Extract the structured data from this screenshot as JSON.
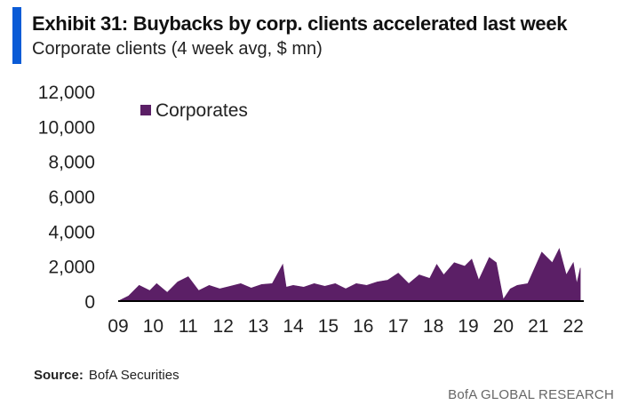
{
  "header": {
    "title": "Exhibit 31: Buybacks by corp. clients accelerated last week",
    "subtitle": "Corporate clients (4 week avg, $ mn)"
  },
  "footer": {
    "source_label": "Source:",
    "source_value": "BofA Securities",
    "brand": "BofA GLOBAL RESEARCH"
  },
  "colors": {
    "series": "#5b1f66",
    "accent": "#0a5bd6",
    "axis": "#000000"
  },
  "chart_data": {
    "type": "area",
    "title": "Exhibit 31: Buybacks by corp. clients accelerated last week",
    "subtitle": "Corporate clients (4 week avg, $ mn)",
    "xlabel": "",
    "ylabel": "",
    "ylim": [
      0,
      12000
    ],
    "yticks": [
      0,
      2000,
      4000,
      6000,
      8000,
      10000,
      12000
    ],
    "ytick_labels": [
      "0",
      "2,000",
      "4,000",
      "6,000",
      "8,000",
      "10,000",
      "12,000"
    ],
    "xlim": [
      2009,
      2022.3
    ],
    "xticks": [
      2009,
      2010,
      2011,
      2012,
      2013,
      2014,
      2015,
      2016,
      2017,
      2018,
      2019,
      2020,
      2021,
      2022
    ],
    "xtick_labels": [
      "09",
      "10",
      "11",
      "12",
      "13",
      "14",
      "15",
      "16",
      "17",
      "18",
      "19",
      "20",
      "21",
      "22"
    ],
    "legend": {
      "position": "top-left",
      "entries": [
        "Corporates"
      ]
    },
    "series": [
      {
        "name": "Corporates",
        "x": [
          2009.0,
          2009.3,
          2009.6,
          2009.9,
          2010.1,
          2010.4,
          2010.7,
          2011.0,
          2011.3,
          2011.6,
          2011.9,
          2012.2,
          2012.5,
          2012.8,
          2013.1,
          2013.4,
          2013.7,
          2013.8,
          2014.0,
          2014.3,
          2014.6,
          2014.9,
          2015.2,
          2015.5,
          2015.8,
          2016.1,
          2016.4,
          2016.7,
          2017.0,
          2017.3,
          2017.6,
          2017.9,
          2018.1,
          2018.3,
          2018.6,
          2018.9,
          2019.1,
          2019.3,
          2019.6,
          2019.8,
          2020.0,
          2020.2,
          2020.4,
          2020.7,
          2020.9,
          2021.1,
          2021.4,
          2021.6,
          2021.8,
          2022.0,
          2022.1,
          2022.2
        ],
        "values": [
          0,
          300,
          900,
          600,
          1000,
          500,
          1100,
          1400,
          600,
          900,
          700,
          850,
          1000,
          750,
          950,
          1000,
          2100,
          800,
          900,
          800,
          1000,
          850,
          1000,
          700,
          1000,
          900,
          1100,
          1200,
          1600,
          1000,
          1500,
          1300,
          2100,
          1500,
          2200,
          2000,
          2400,
          1200,
          2500,
          2200,
          100,
          700,
          900,
          1000,
          1900,
          2800,
          2200,
          3000,
          1500,
          2200,
          1000,
          1900
        ]
      }
    ]
  }
}
